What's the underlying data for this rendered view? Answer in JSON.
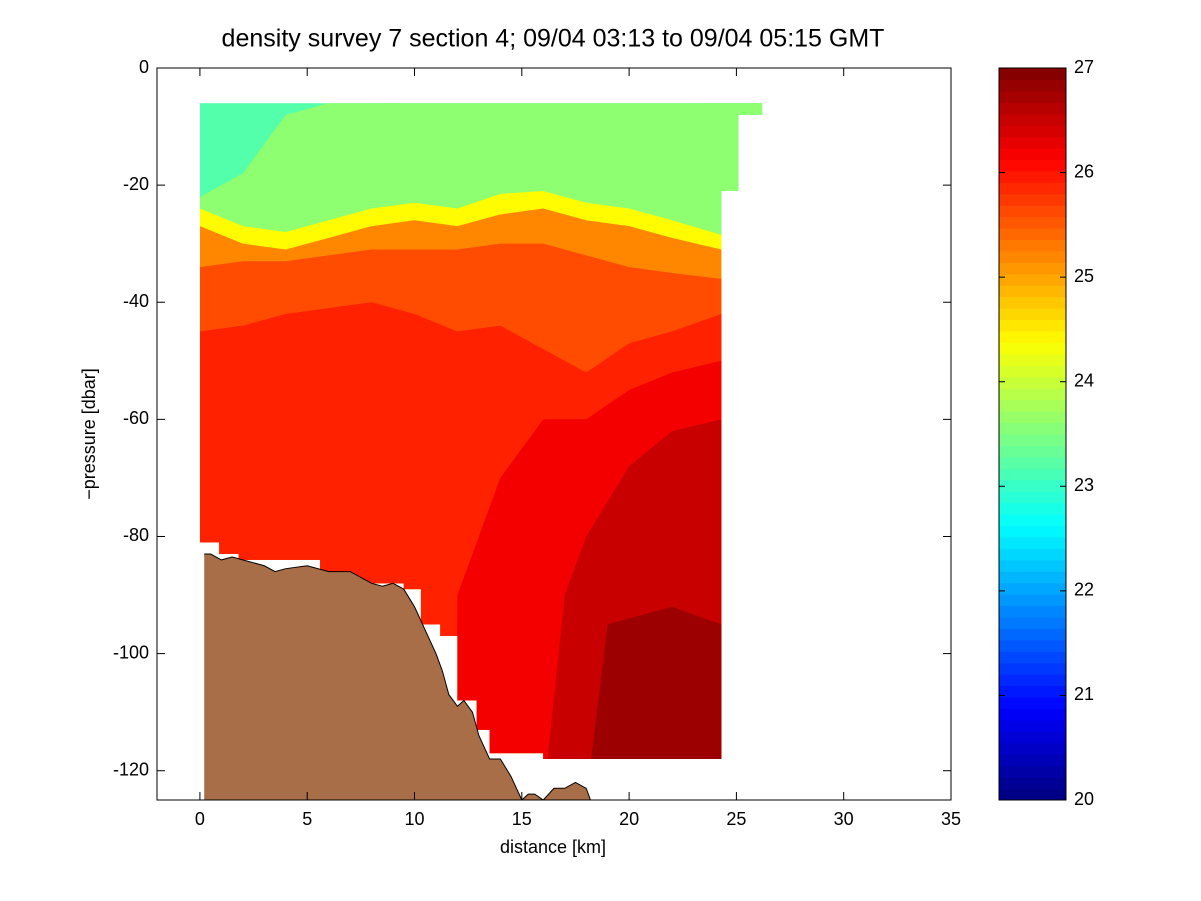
{
  "chart_data": {
    "type": "contourf",
    "title": "density survey 7 section 4; 09/04 03:13 to 09/04 05:15 GMT",
    "xlabel": "distance [km]",
    "ylabel": "−pressure [dbar]",
    "xlim": [
      -2,
      35
    ],
    "ylim": [
      -125,
      0
    ],
    "xticks": [
      0,
      5,
      10,
      15,
      20,
      25,
      30,
      35
    ],
    "yticks": [
      0,
      -20,
      -40,
      -60,
      -80,
      -100,
      -120
    ],
    "clim": [
      20,
      27
    ],
    "cticks": [
      20,
      21,
      22,
      23,
      24,
      25,
      26,
      27
    ],
    "colormap": "jet",
    "data_extent": {
      "x": [
        0,
        8.3,
        8.3,
        9.3,
        9.3,
        23.3,
        23.3,
        26.2,
        26.2,
        25.1,
        25.1,
        24.3,
        24.3,
        16,
        16,
        13.5,
        13.5,
        12.9,
        12.9,
        12,
        12,
        11.2,
        11.2,
        10.3,
        10.3,
        9.5,
        9.5,
        7.5,
        7.5,
        5.6,
        5.6,
        1.8,
        1.8,
        0.9,
        0.9,
        0
      ],
      "y": [
        -6,
        -6,
        -5,
        -5,
        -6,
        -6,
        -5,
        -5,
        -8,
        -8,
        -21,
        -21,
        -118,
        -118,
        -117,
        -117,
        -113,
        -113,
        -108,
        -108,
        -97,
        -97,
        -95,
        -95,
        -89,
        -89,
        -88,
        -88,
        -87,
        -87,
        -84,
        -84,
        -83,
        -83,
        -81,
        -81
      ]
    },
    "layers": [
      {
        "value": 23.2,
        "x": [
          0,
          24.3
        ],
        "y": [
          -6,
          -6
        ]
      },
      {
        "value": 23.6,
        "x": [
          0,
          2,
          4,
          6,
          24.3
        ],
        "y": [
          -22,
          -18,
          -8,
          -6,
          -6
        ]
      },
      {
        "value": 24.4,
        "x": [
          0,
          2,
          4,
          6,
          8,
          10,
          12,
          14,
          16,
          18,
          20,
          22,
          24.3
        ],
        "y": [
          -24,
          -27,
          -28,
          -26,
          -24,
          -23,
          -24,
          -21.5,
          -21,
          -23,
          -24,
          -26,
          -28.5
        ]
      },
      {
        "value": 25.2,
        "x": [
          0,
          2,
          4,
          6,
          8,
          10,
          12,
          14,
          16,
          18,
          20,
          22,
          24.3
        ],
        "y": [
          -27,
          -30,
          -31,
          -29,
          -27,
          -26,
          -27,
          -25,
          -24,
          -26,
          -27,
          -29,
          -31
        ]
      },
      {
        "value": 25.6,
        "x": [
          0,
          2,
          4,
          6,
          8,
          10,
          12,
          14,
          16,
          18,
          20,
          22,
          24.3
        ],
        "y": [
          -34,
          -33,
          -33,
          -32,
          -31,
          -31,
          -31,
          -30,
          -30,
          -32,
          -34,
          -35,
          -36
        ]
      },
      {
        "value": 25.9,
        "x": [
          0,
          2,
          4,
          6,
          8,
          10,
          12,
          14,
          16,
          18,
          20,
          22,
          24.3
        ],
        "y": [
          -45,
          -44,
          -42,
          -41,
          -40,
          -42,
          -45,
          -44,
          -48,
          -52,
          -47,
          -45,
          -42
        ]
      },
      {
        "value": 26.2,
        "x": [
          0,
          11.9,
          12,
          14,
          16,
          18,
          20,
          22,
          24.3
        ],
        "y": [
          -125,
          -125,
          -90,
          -70,
          -60,
          -60,
          -55,
          -52,
          -50
        ]
      },
      {
        "value": 26.5,
        "x": [
          0,
          15.9,
          16,
          17,
          18,
          20,
          22,
          24.3
        ],
        "y": [
          -125,
          -125,
          -125,
          -90,
          -80,
          -68,
          -62,
          -60
        ]
      },
      {
        "value": 26.8,
        "x": [
          0,
          17.9,
          18,
          19,
          22,
          24.3
        ],
        "y": [
          -125,
          -125,
          -125,
          -95,
          -92,
          -95
        ]
      }
    ],
    "bathymetry": {
      "color": "#a86e48",
      "x": [
        0.2,
        0.5,
        1,
        1.5,
        2,
        3,
        3.5,
        4,
        5,
        6,
        7,
        8,
        8.5,
        9,
        9.5,
        10,
        10.5,
        11,
        11.3,
        11.6,
        12,
        12.3,
        12.7,
        13,
        13.5,
        14,
        14.5,
        15,
        15.3,
        15.6,
        16,
        16.5,
        17,
        17.5,
        18,
        18.2
      ],
      "y": [
        -83,
        -83,
        -84,
        -83.5,
        -84,
        -85,
        -86,
        -85.5,
        -85,
        -86,
        -86,
        -88,
        -88.5,
        -88,
        -89,
        -92,
        -96,
        -100,
        -103,
        -107,
        -109,
        -108,
        -110,
        -114,
        -118,
        -118,
        -121,
        -125,
        -124,
        -124,
        -125,
        -123,
        -123,
        -122,
        -123,
        -125
      ]
    }
  }
}
